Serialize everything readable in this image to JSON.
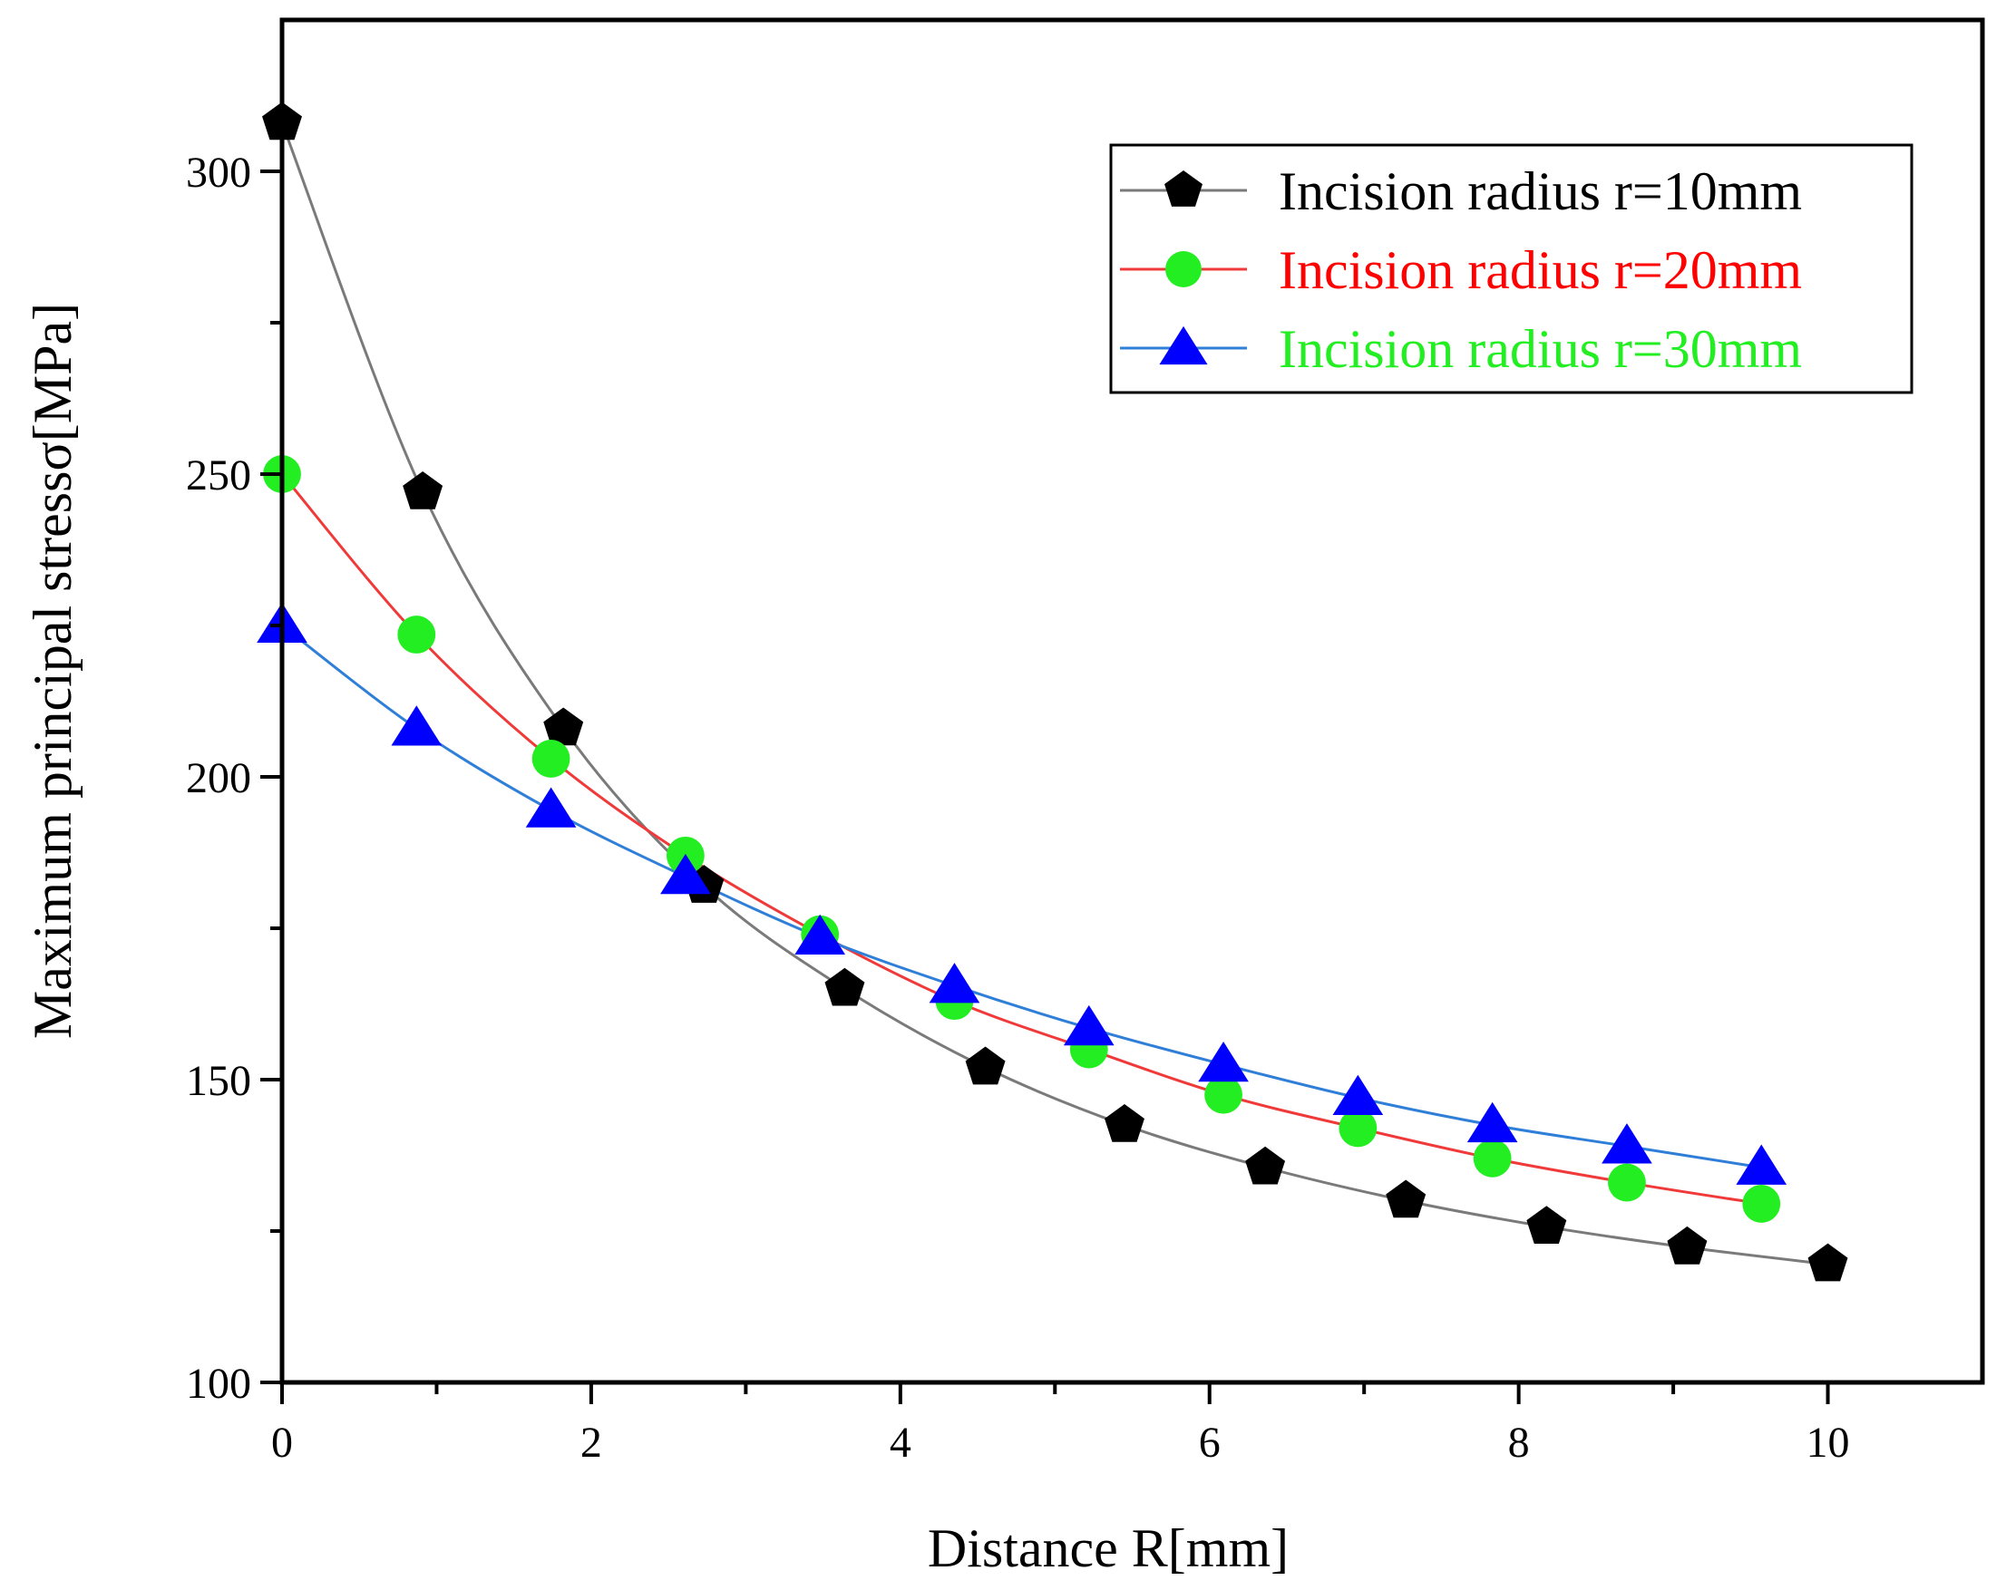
{
  "chart_data": {
    "type": "line",
    "title": "",
    "xlabel": "Distance R[mm]",
    "ylabel": "Maximum principal stressσ[MPa]",
    "xlim": [
      0,
      11
    ],
    "ylim": [
      100,
      325
    ],
    "xticks": [
      0,
      2,
      4,
      6,
      8,
      10
    ],
    "xtick_labels": [
      "0",
      "2",
      "4",
      "6",
      "8",
      "10"
    ],
    "yticks": [
      100,
      150,
      200,
      250,
      300
    ],
    "ytick_labels": [
      "100",
      "150",
      "200",
      "250",
      "300"
    ],
    "grid": false,
    "legend_position": "top-right",
    "series": [
      {
        "name": "Incision radius r=10mm",
        "line_color": "#7a7a7a",
        "marker": "pentagon",
        "marker_color": "#000000",
        "label_color": "#000000",
        "x": [
          0,
          0.91,
          1.82,
          2.73,
          3.64,
          4.55,
          5.45,
          6.36,
          7.27,
          8.18,
          9.09,
          10.0
        ],
        "y": [
          308,
          247,
          208,
          182,
          165,
          152,
          142.5,
          135.5,
          130,
          125.7,
          122.3,
          119.5
        ]
      },
      {
        "name": "Incision radius r=20mm",
        "line_color": "#f03a3a",
        "marker": "circle",
        "marker_color": "#22ee22",
        "label_color": "#ff0000",
        "x": [
          0,
          0.87,
          1.74,
          2.61,
          3.48,
          4.35,
          5.22,
          6.09,
          6.96,
          7.83,
          8.7,
          9.57
        ],
        "y": [
          250,
          223.5,
          203,
          187,
          174,
          163,
          155,
          147.5,
          142,
          137,
          133,
          129.5
        ]
      },
      {
        "name": "Incision radius r=30mm",
        "line_color": "#2f7fd8",
        "marker": "triangle",
        "marker_color": "#0000ff",
        "label_color": "#22ee22",
        "x": [
          0,
          0.87,
          1.74,
          2.61,
          3.48,
          4.35,
          5.22,
          6.09,
          6.96,
          7.83,
          8.7,
          9.57
        ],
        "y": [
          225,
          208,
          194.5,
          183.5,
          173.5,
          165.5,
          158.5,
          152.5,
          147,
          142.5,
          139,
          135.5
        ]
      }
    ]
  }
}
